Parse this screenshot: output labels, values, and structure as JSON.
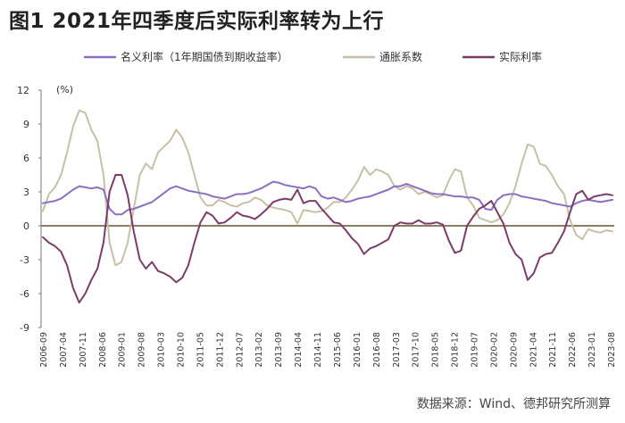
{
  "title": "图1  2021年四季度后实际利率转为上行",
  "source": "数据来源：Wind、德邦研究所测算",
  "chart_data": {
    "type": "line",
    "unit_label": "(%)",
    "ylim": [
      -9,
      12
    ],
    "yticks": [
      12,
      9,
      6,
      3,
      0,
      -3,
      -6,
      -9
    ],
    "grid": false,
    "legend_position": "top",
    "x_labels": [
      "2006-09",
      "2007-04",
      "2007-11",
      "2008-06",
      "2009-01",
      "2009-08",
      "2010-03",
      "2010-10",
      "2011-05",
      "2011-12",
      "2012-07",
      "2013-02",
      "2013-09",
      "2014-04",
      "2014-11",
      "2015-06",
      "2016-01",
      "2016-08",
      "2017-03",
      "2017-10",
      "2018-05",
      "2018-12",
      "2019-07",
      "2020-02",
      "2020-09",
      "2021-04",
      "2021-11",
      "2022-06",
      "2023-01",
      "2023-08"
    ],
    "series": [
      {
        "name": "名义利率（1年期国债到期收益率）",
        "color": "#8b6fc0",
        "values": [
          2.0,
          2.1,
          2.2,
          2.4,
          2.8,
          3.2,
          3.5,
          3.4,
          3.3,
          3.4,
          3.2,
          1.5,
          1.0,
          1.0,
          1.4,
          1.5,
          1.7,
          1.9,
          2.1,
          2.5,
          2.9,
          3.3,
          3.5,
          3.3,
          3.1,
          3.0,
          2.9,
          2.8,
          2.6,
          2.5,
          2.4,
          2.6,
          2.8,
          2.8,
          2.9,
          3.1,
          3.3,
          3.6,
          3.9,
          3.8,
          3.6,
          3.5,
          3.4,
          3.3,
          3.5,
          3.3,
          2.6,
          2.4,
          2.5,
          2.3,
          2.1,
          2.2,
          2.4,
          2.5,
          2.6,
          2.8,
          3.0,
          3.2,
          3.5,
          3.5,
          3.7,
          3.5,
          3.3,
          3.1,
          2.9,
          2.8,
          2.8,
          2.7,
          2.6,
          2.6,
          2.5,
          2.5,
          2.3,
          1.5,
          1.4,
          2.3,
          2.7,
          2.8,
          2.8,
          2.6,
          2.5,
          2.4,
          2.3,
          2.2,
          2.0,
          1.9,
          1.8,
          1.7,
          2.0,
          2.2,
          2.3,
          2.2,
          2.1,
          2.2,
          2.3
        ]
      },
      {
        "name": "通胀系数",
        "color": "#c7c0a6",
        "values": [
          1.3,
          2.8,
          3.4,
          4.5,
          6.5,
          8.8,
          10.2,
          10.0,
          8.5,
          7.5,
          4.5,
          -1.5,
          -3.5,
          -3.2,
          -1.5,
          1.5,
          4.5,
          5.5,
          5.0,
          6.5,
          7.0,
          7.5,
          8.5,
          7.8,
          6.5,
          4.5,
          2.5,
          1.8,
          1.8,
          2.3,
          2.1,
          1.8,
          1.7,
          2.0,
          2.1,
          2.5,
          2.3,
          1.8,
          1.6,
          1.5,
          1.4,
          1.2,
          0.2,
          1.4,
          1.3,
          1.2,
          1.3,
          1.6,
          2.1,
          2.1,
          2.5,
          3.2,
          4.0,
          5.2,
          4.5,
          5.0,
          4.8,
          4.5,
          3.5,
          3.2,
          3.5,
          3.3,
          2.8,
          3.0,
          2.8,
          2.5,
          2.7,
          4.0,
          5.0,
          4.8,
          2.5,
          1.8,
          0.7,
          0.5,
          0.3,
          0.5,
          1.0,
          2.0,
          3.5,
          5.5,
          7.2,
          7.0,
          5.5,
          5.3,
          4.5,
          3.5,
          2.8,
          0.5,
          -0.8,
          -1.2,
          -0.3,
          -0.5,
          -0.6,
          -0.4,
          -0.5
        ]
      },
      {
        "name": "实际利率",
        "color": "#7d3c68",
        "values": [
          -1.0,
          -1.5,
          -1.8,
          -2.3,
          -3.5,
          -5.5,
          -6.8,
          -6.0,
          -4.8,
          -3.8,
          -1.5,
          3.0,
          4.5,
          4.5,
          2.7,
          -0.5,
          -3.0,
          -3.8,
          -3.2,
          -4.0,
          -4.2,
          -4.5,
          -5.0,
          -4.6,
          -3.5,
          -1.5,
          0.3,
          1.2,
          0.9,
          0.2,
          0.3,
          0.7,
          1.2,
          0.9,
          0.8,
          0.6,
          1.0,
          1.5,
          2.1,
          2.3,
          2.4,
          2.3,
          3.2,
          2.0,
          2.2,
          2.2,
          1.5,
          0.9,
          0.3,
          0.2,
          -0.4,
          -1.1,
          -1.6,
          -2.5,
          -2.0,
          -1.8,
          -1.5,
          -1.2,
          0.0,
          0.3,
          0.2,
          0.2,
          0.5,
          0.2,
          0.2,
          0.3,
          0.1,
          -1.3,
          -2.4,
          -2.2,
          0.0,
          0.8,
          1.5,
          1.8,
          2.2,
          1.2,
          0.2,
          -1.5,
          -2.5,
          -3.0,
          -4.8,
          -4.2,
          -2.8,
          -2.5,
          -2.4,
          -1.5,
          -0.5,
          1.2,
          2.8,
          3.1,
          2.3,
          2.6,
          2.7,
          2.8,
          2.7
        ]
      }
    ]
  }
}
